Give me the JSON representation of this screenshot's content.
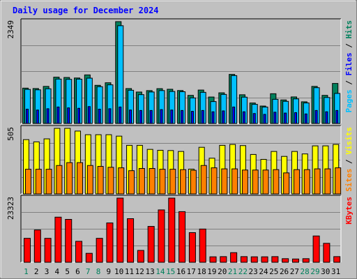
{
  "title": "Daily usage for December 2024",
  "colors": {
    "background": "#c0c0c0",
    "hits": "#00805c",
    "files": "#0000ff",
    "pages": "#00c0ff",
    "visits": "#ffff00",
    "sites": "#ff8000",
    "kbytes": "#ff0000",
    "title": "#0000ff",
    "weekend_label": "#00805c",
    "weekday_label": "#0000ff"
  },
  "chart_data": [
    {
      "type": "bar",
      "ymax_label": "2349",
      "ylim": [
        0,
        2349
      ],
      "right_label": [
        {
          "text": "Pages",
          "color": "#00c0ff"
        },
        {
          "text": " / ",
          "color": "#000000"
        },
        {
          "text": "Files",
          "color": "#0000ff"
        },
        {
          "text": " / ",
          "color": "#000000"
        },
        {
          "text": "Hits",
          "color": "#00805c"
        }
      ],
      "series": [
        {
          "name": "Hits",
          "color": "#00805c",
          "values": [
            815,
            806,
            855,
            1068,
            1061,
            1049,
            1120,
            880,
            939,
            2349,
            805,
            725,
            758,
            803,
            789,
            760,
            648,
            771,
            610,
            707,
            1132,
            662,
            472,
            402,
            686,
            543,
            612,
            500,
            855,
            648,
            923
          ]
        },
        {
          "name": "Files",
          "color": "#0000ff",
          "values": [
            330,
            310,
            340,
            380,
            360,
            350,
            390,
            330,
            340,
            380,
            310,
            300,
            300,
            320,
            310,
            300,
            280,
            300,
            270,
            290,
            380,
            270,
            230,
            210,
            260,
            240,
            250,
            220,
            300,
            270,
            300
          ]
        },
        {
          "name": "Pages",
          "color": "#00c0ff",
          "values": [
            786,
            776,
            800,
            1024,
            1018,
            1022,
            1045,
            848,
            891,
            2255,
            766,
            665,
            726,
            759,
            738,
            732,
            590,
            718,
            505,
            670,
            1104,
            607,
            441,
            379,
            557,
            510,
            567,
            473,
            825,
            599,
            693
          ]
        }
      ]
    },
    {
      "type": "bar",
      "ymax_label": "505",
      "ylim": [
        0,
        505
      ],
      "right_label": [
        {
          "text": "Sites",
          "color": "#ff8000"
        },
        {
          "text": " / ",
          "color": "#000000"
        },
        {
          "text": "Visits",
          "color": "#ffff00"
        }
      ],
      "series": [
        {
          "name": "Visits",
          "color": "#ffff00",
          "values": [
            418,
            401,
            424,
            505,
            505,
            484,
            456,
            456,
            456,
            445,
            374,
            374,
            343,
            336,
            334,
            327,
            191,
            359,
            275,
            374,
            381,
            372,
            304,
            266,
            327,
            289,
            327,
            308,
            370,
            370,
            381
          ]
        },
        {
          "name": "Sites",
          "color": "#ff8000",
          "values": [
            190,
            190,
            190,
            219,
            241,
            241,
            219,
            212,
            205,
            201,
            179,
            196,
            196,
            190,
            190,
            187,
            182,
            219,
            201,
            193,
            193,
            184,
            184,
            184,
            187,
            162,
            187,
            187,
            193,
            193,
            201
          ]
        }
      ]
    },
    {
      "type": "bar",
      "ymax_label": "23323",
      "ylim": [
        0,
        23323
      ],
      "right_label": [
        {
          "text": "KBytes",
          "color": "#ff0000"
        }
      ],
      "series": [
        {
          "name": "KBytes",
          "color": "#ff0000",
          "values": [
            8702,
            11735,
            8702,
            16403,
            15590,
            7617,
            3253,
            8702,
            14291,
            23323,
            15846,
            4305,
            13035,
            19034,
            23323,
            18400,
            10770,
            12081,
            1983,
            2054,
            3497,
            2054,
            1983,
            1983,
            2054,
            1311,
            1191,
            1311,
            9560,
            6886,
            2054
          ]
        }
      ]
    }
  ],
  "x_axis": {
    "labels": [
      "1",
      "2",
      "3",
      "4",
      "5",
      "6",
      "7",
      "8",
      "9",
      "10",
      "11",
      "12",
      "13",
      "14",
      "15",
      "16",
      "17",
      "18",
      "19",
      "20",
      "21",
      "22",
      "23",
      "24",
      "25",
      "26",
      "27",
      "28",
      "29",
      "30",
      "31"
    ],
    "weekend": [
      1,
      7,
      8,
      14,
      15,
      21,
      22,
      28,
      29
    ]
  }
}
